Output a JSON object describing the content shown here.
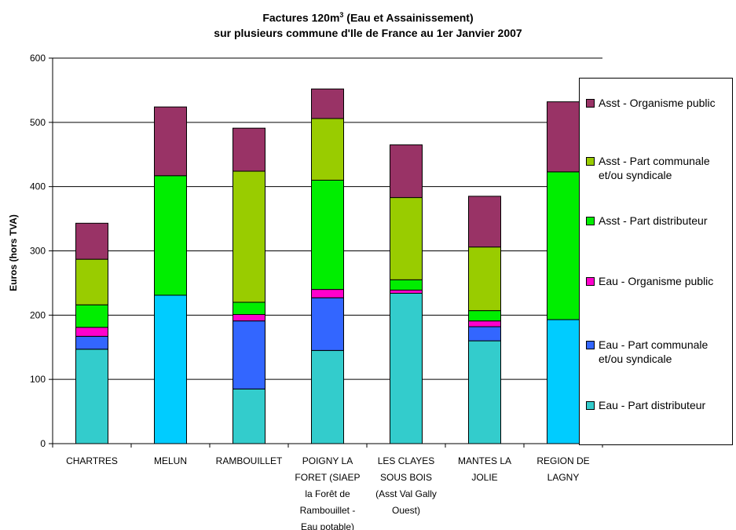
{
  "chart_data": {
    "type": "bar",
    "stacked": true,
    "title": "Factures 120m³ (Eau et Assainissement)",
    "title_line1_prefix": "Factures 120m",
    "title_line1_sup": "3",
    "title_line1_suffix": " (Eau et Assainissement)",
    "subtitle": "sur plusieurs commune d'Ile de France au 1er Janvier 2007",
    "xlabel": "",
    "ylabel": "Euros  (hors TVA)",
    "ylim": [
      0,
      600
    ],
    "yticks": [
      "0",
      "100",
      "200",
      "300",
      "400",
      "500",
      "600"
    ],
    "grid": true,
    "legend_position": "right",
    "categories": [
      [
        "CHARTRES"
      ],
      [
        "MELUN"
      ],
      [
        "RAMBOUILLET"
      ],
      [
        "POIGNY  LA",
        "FORET (SIAEP",
        "la Forêt de",
        "Rambouillet -",
        "Eau potable)"
      ],
      [
        "LES CLAYES",
        "SOUS BOIS",
        "(Asst Val Gally",
        "Ouest)"
      ],
      [
        "MANTES LA",
        "JOLIE"
      ],
      [
        "REGION DE",
        "LAGNY"
      ]
    ],
    "series": [
      {
        "name": "Eau - Part distributeur",
        "color": "#33CCCC",
        "alt_color": "#00CCFF",
        "values": [
          147,
          231,
          85,
          145,
          234,
          160,
          193
        ]
      },
      {
        "name": "Eau - Part communale et/ou syndicale",
        "color": "#3366FF",
        "values": [
          20,
          0,
          106,
          82,
          0,
          22,
          0
        ]
      },
      {
        "name": "Eau - Organisme public",
        "color": "#FF00CC",
        "values": [
          14,
          0,
          10,
          13,
          5,
          9,
          0
        ]
      },
      {
        "name": "Asst - Part distributeur",
        "color": "#00EE00",
        "values": [
          35,
          186,
          19,
          170,
          16,
          16,
          230
        ]
      },
      {
        "name": "Asst - Part communale et/ou syndicale",
        "color": "#99CC00",
        "values": [
          71,
          0,
          204,
          96,
          128,
          99,
          0
        ]
      },
      {
        "name": "Asst - Organisme public",
        "color": "#993366",
        "values": [
          56,
          107,
          67,
          46,
          82,
          79,
          109
        ]
      }
    ]
  },
  "legend": {
    "items": [
      {
        "label_lines": [
          "Asst - Organisme public"
        ],
        "color": "#993366"
      },
      {
        "label_lines": [
          "Asst - Part communale",
          "et/ou syndicale"
        ],
        "color": "#99CC00"
      },
      {
        "label_lines": [
          "Asst - Part distributeur"
        ],
        "color": "#00EE00"
      },
      {
        "label_lines": [
          "Eau - Organisme public"
        ],
        "color": "#FF00CC"
      },
      {
        "label_lines": [
          "Eau - Part communale",
          "et/ou syndicale"
        ],
        "color": "#3366FF"
      },
      {
        "label_lines": [
          "Eau - Part distributeur"
        ],
        "color": "#33CCCC"
      }
    ]
  },
  "alt_color_bars": [
    1,
    6
  ]
}
